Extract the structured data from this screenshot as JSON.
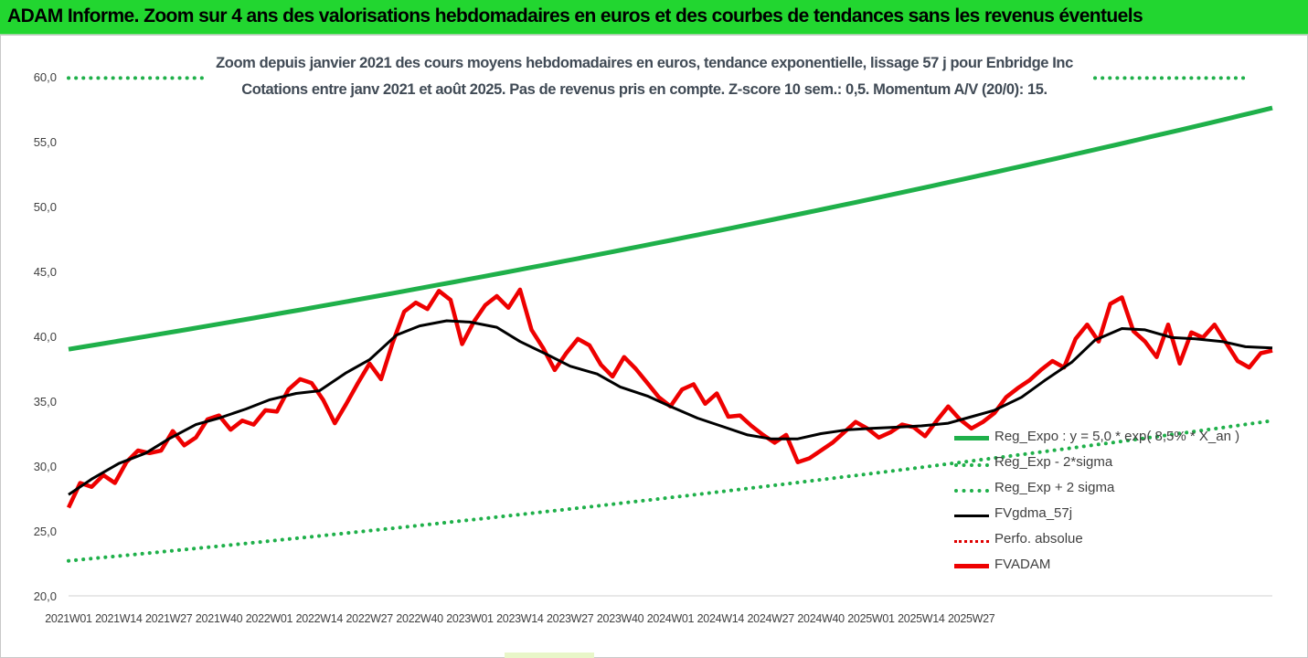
{
  "banner": {
    "title": "ADAM Informe. Zoom sur 4 ans des valorisations hebdomadaires en euros et des courbes de tendances sans les revenus éventuels",
    "color": "#22d630"
  },
  "chart_data": {
    "type": "line",
    "title_line1": "Zoom depuis janvier 2021 des cours moyens hebdomadaires en euros, tendance exponentielle, lissage 57 j pour Enbridge Inc",
    "title_line2": "Cotations entre janv 2021 et août 2025. Pas de revenus pris en compte. Z-score 10 sem.: 0,5. Momentum A/V (20/0): 15.",
    "ylim": [
      20,
      60
    ],
    "yticks": [
      "20,0",
      "25,0",
      "30,0",
      "35,0",
      "40,0",
      "45,0",
      "50,0",
      "55,0",
      "60,0"
    ],
    "xticks": [
      "2021W01",
      "2021W14",
      "2021W27",
      "2021W40",
      "2022W01",
      "2022W14",
      "2022W27",
      "2022W40",
      "2023W01",
      "2023W14",
      "2023W27",
      "2023W40",
      "2024W01",
      "2024W14",
      "2024W27",
      "2024W40",
      "2025W01",
      "2025W14",
      "2025W27"
    ],
    "weeks": 241,
    "legend_position": "right",
    "series": [
      {
        "name": "Reg_Expo : y = 5,0 * exp( 8,5% * X_an )",
        "color": "#1fb04a",
        "style": "solid-thick",
        "start": 39.0,
        "end": 57.6
      },
      {
        "name": "Reg_Exp - 2*sigma",
        "color": "#1fb04a",
        "style": "dotted",
        "start": 22.7,
        "end": 33.5
      },
      {
        "name": "Reg_Exp + 2 sigma",
        "color": "#1fb04a",
        "style": "dotted",
        "start": 59.9,
        "end": 59.9
      },
      {
        "name": "FVgdma_57j",
        "color": "#000000",
        "style": "solid",
        "points": [
          [
            0,
            27.8
          ],
          [
            6,
            29.0
          ],
          [
            13,
            30.2
          ],
          [
            20,
            31.0
          ],
          [
            26,
            32.1
          ],
          [
            33,
            33.2
          ],
          [
            39,
            33.7
          ],
          [
            46,
            34.4
          ],
          [
            52,
            35.1
          ],
          [
            59,
            35.6
          ],
          [
            65,
            35.8
          ],
          [
            72,
            37.2
          ],
          [
            78,
            38.2
          ],
          [
            85,
            40.1
          ],
          [
            91,
            40.8
          ],
          [
            98,
            41.2
          ],
          [
            104,
            41.1
          ],
          [
            111,
            40.7
          ],
          [
            117,
            39.6
          ],
          [
            124,
            38.6
          ],
          [
            130,
            37.7
          ],
          [
            137,
            37.1
          ],
          [
            143,
            36.1
          ],
          [
            150,
            35.4
          ],
          [
            156,
            34.6
          ],
          [
            163,
            33.7
          ],
          [
            169,
            33.1
          ],
          [
            176,
            32.4
          ],
          [
            182,
            32.1
          ],
          [
            189,
            32.1
          ],
          [
            195,
            32.5
          ],
          [
            202,
            32.8
          ],
          [
            208,
            32.9
          ],
          [
            215,
            33.0
          ],
          [
            221,
            33.1
          ],
          [
            228,
            33.3
          ],
          [
            234,
            33.8
          ],
          [
            240,
            34.3
          ],
          [
            247,
            35.3
          ],
          [
            253,
            36.6
          ],
          [
            260,
            38.0
          ],
          [
            266,
            39.7
          ],
          [
            273,
            40.6
          ],
          [
            279,
            40.5
          ],
          [
            286,
            39.9
          ],
          [
            292,
            39.8
          ],
          [
            299,
            39.6
          ],
          [
            305,
            39.2
          ],
          [
            312,
            39.1
          ]
        ]
      },
      {
        "name": "Perfo. absolue",
        "color": "#e00000",
        "style": "dotted",
        "points": []
      },
      {
        "name": "FVADAM",
        "color": "#ee0000",
        "style": "solid-thick",
        "points": [
          [
            0,
            26.8
          ],
          [
            3,
            28.7
          ],
          [
            6,
            28.4
          ],
          [
            9,
            29.3
          ],
          [
            12,
            28.7
          ],
          [
            15,
            30.3
          ],
          [
            18,
            31.2
          ],
          [
            21,
            31.0
          ],
          [
            24,
            31.2
          ],
          [
            27,
            32.7
          ],
          [
            30,
            31.6
          ],
          [
            33,
            32.2
          ],
          [
            36,
            33.6
          ],
          [
            39,
            33.9
          ],
          [
            42,
            32.8
          ],
          [
            45,
            33.5
          ],
          [
            48,
            33.2
          ],
          [
            51,
            34.3
          ],
          [
            54,
            34.2
          ],
          [
            57,
            35.9
          ],
          [
            60,
            36.7
          ],
          [
            63,
            36.4
          ],
          [
            66,
            35.1
          ],
          [
            69,
            33.3
          ],
          [
            72,
            34.8
          ],
          [
            75,
            36.4
          ],
          [
            78,
            37.9
          ],
          [
            81,
            36.7
          ],
          [
            84,
            39.5
          ],
          [
            87,
            41.9
          ],
          [
            90,
            42.6
          ],
          [
            93,
            42.1
          ],
          [
            96,
            43.5
          ],
          [
            99,
            42.8
          ],
          [
            102,
            39.4
          ],
          [
            105,
            41.1
          ],
          [
            108,
            42.4
          ],
          [
            111,
            43.1
          ],
          [
            114,
            42.2
          ],
          [
            117,
            43.6
          ],
          [
            120,
            40.5
          ],
          [
            123,
            39.1
          ],
          [
            126,
            37.4
          ],
          [
            129,
            38.7
          ],
          [
            132,
            39.8
          ],
          [
            135,
            39.3
          ],
          [
            138,
            37.8
          ],
          [
            141,
            36.9
          ],
          [
            144,
            38.4
          ],
          [
            147,
            37.5
          ],
          [
            150,
            36.4
          ],
          [
            153,
            35.3
          ],
          [
            156,
            34.6
          ],
          [
            159,
            35.9
          ],
          [
            162,
            36.3
          ],
          [
            165,
            34.8
          ],
          [
            168,
            35.6
          ],
          [
            171,
            33.8
          ],
          [
            174,
            33.9
          ],
          [
            177,
            33.1
          ],
          [
            180,
            32.4
          ],
          [
            183,
            31.8
          ],
          [
            186,
            32.4
          ],
          [
            189,
            30.3
          ],
          [
            192,
            30.6
          ],
          [
            195,
            31.2
          ],
          [
            198,
            31.8
          ],
          [
            201,
            32.6
          ],
          [
            204,
            33.4
          ],
          [
            207,
            32.9
          ],
          [
            210,
            32.2
          ],
          [
            213,
            32.6
          ],
          [
            216,
            33.2
          ],
          [
            219,
            33.0
          ],
          [
            222,
            32.3
          ],
          [
            225,
            33.5
          ],
          [
            228,
            34.6
          ],
          [
            231,
            33.6
          ],
          [
            234,
            32.9
          ],
          [
            237,
            33.4
          ],
          [
            240,
            34.1
          ],
          [
            243,
            35.3
          ],
          [
            246,
            36.0
          ],
          [
            249,
            36.6
          ],
          [
            252,
            37.4
          ],
          [
            255,
            38.1
          ],
          [
            258,
            37.6
          ],
          [
            261,
            39.8
          ],
          [
            264,
            40.9
          ],
          [
            267,
            39.6
          ],
          [
            270,
            42.5
          ],
          [
            273,
            43.0
          ],
          [
            276,
            40.4
          ],
          [
            279,
            39.6
          ],
          [
            282,
            38.4
          ],
          [
            285,
            40.9
          ],
          [
            288,
            37.9
          ],
          [
            291,
            40.3
          ],
          [
            294,
            39.9
          ],
          [
            297,
            40.9
          ],
          [
            300,
            39.5
          ],
          [
            303,
            38.1
          ],
          [
            306,
            37.6
          ],
          [
            309,
            38.7
          ],
          [
            312,
            38.9
          ]
        ]
      }
    ]
  }
}
